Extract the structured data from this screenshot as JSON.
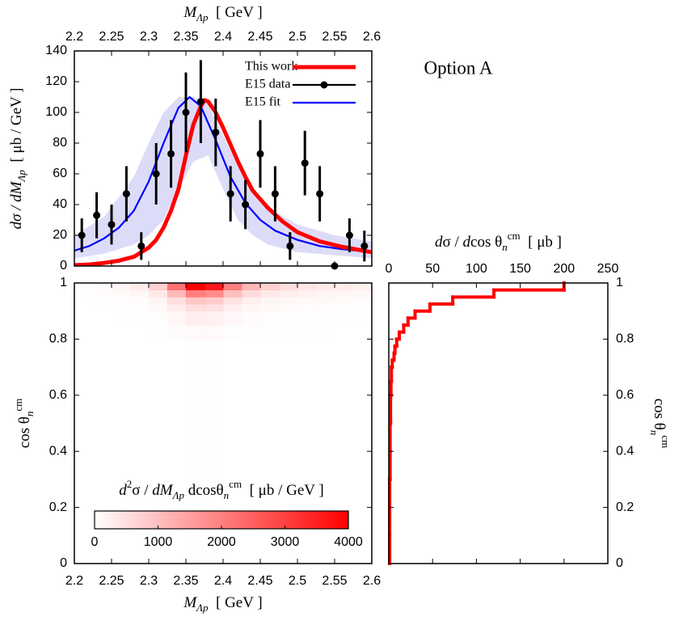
{
  "chart_data": [
    {
      "type": "line",
      "xlabel": [
        {
          "text": "M",
          "italic": true
        },
        {
          "text": "Λp",
          "sub": true,
          "italic": true
        },
        {
          "text": "  [ GeV ]"
        }
      ],
      "ylabel": [
        {
          "text": "dσ / dM",
          "italic": true
        },
        {
          "text": "Λp",
          "sub": true,
          "italic": true
        },
        {
          "text": "  [ μb / GeV ]"
        }
      ],
      "annotation": "Option A",
      "xlim": [
        2.2,
        2.6
      ],
      "xticks": [
        2.2,
        2.25,
        2.3,
        2.35,
        2.4,
        2.45,
        2.5,
        2.55,
        2.6
      ],
      "ylim": [
        0,
        140
      ],
      "yticks": [
        0,
        20,
        40,
        60,
        80,
        100,
        120,
        140
      ],
      "legend": "upper right",
      "series": [
        {
          "name": "This work",
          "color": "#ff0000",
          "x": [
            2.2,
            2.22,
            2.24,
            2.26,
            2.28,
            2.3,
            2.31,
            2.32,
            2.33,
            2.34,
            2.35,
            2.36,
            2.37,
            2.375,
            2.38,
            2.39,
            2.4,
            2.41,
            2.42,
            2.43,
            2.44,
            2.46,
            2.48,
            2.5,
            2.53,
            2.56,
            2.6
          ],
          "values": [
            0.5,
            1,
            2,
            3.5,
            6,
            12,
            17,
            25,
            36,
            50,
            72,
            92,
            104,
            108,
            107,
            100,
            90,
            79,
            68,
            58,
            49,
            38,
            29,
            22,
            16,
            12.5,
            9
          ]
        },
        {
          "name": "E15 data",
          "color": "#000000",
          "marker": "circle",
          "x": [
            2.21,
            2.23,
            2.25,
            2.27,
            2.29,
            2.31,
            2.33,
            2.35,
            2.37,
            2.39,
            2.41,
            2.43,
            2.45,
            2.47,
            2.49,
            2.51,
            2.53,
            2.55,
            2.57,
            2.59
          ],
          "values": [
            20,
            33,
            27,
            47,
            13,
            60,
            73,
            100,
            107,
            87,
            47,
            40,
            73,
            47,
            13,
            67,
            47,
            0,
            20,
            13
          ],
          "errors": [
            11,
            15,
            13,
            18,
            9,
            20,
            22,
            26,
            27,
            22,
            18,
            16,
            22,
            18,
            9,
            21,
            18,
            0,
            11,
            10
          ]
        },
        {
          "name": "E15 fit",
          "color": "#0000ff",
          "x": [
            2.2,
            2.22,
            2.24,
            2.26,
            2.28,
            2.3,
            2.32,
            2.34,
            2.355,
            2.37,
            2.39,
            2.41,
            2.43,
            2.45,
            2.47,
            2.5,
            2.53,
            2.56,
            2.6
          ],
          "values": [
            10,
            13,
            18,
            25,
            36,
            55,
            80,
            103,
            110,
            104,
            82,
            58,
            41,
            30,
            23,
            17,
            13,
            11,
            9
          ],
          "band": {
            "color": "#dcdcf8",
            "x": [
              2.2,
              2.24,
              2.28,
              2.3,
              2.32,
              2.34,
              2.36,
              2.38,
              2.4,
              2.42,
              2.44,
              2.46,
              2.5,
              2.55,
              2.6
            ],
            "upper": [
              20,
              32,
              58,
              80,
              100,
              110,
              110,
              105,
              85,
              65,
              48,
              38,
              27,
              20,
              16
            ],
            "lower": [
              5,
              8,
              14,
              20,
              30,
              50,
              68,
              72,
              50,
              30,
              20,
              14,
              9,
              7,
              5
            ]
          }
        }
      ]
    },
    {
      "type": "heatmap",
      "xlabel": [
        {
          "text": "M",
          "italic": true
        },
        {
          "text": "Λp",
          "sub": true,
          "italic": true
        },
        {
          "text": "  [ GeV ]"
        }
      ],
      "ylabel": [
        {
          "text": "cos θ"
        },
        {
          "text": "n",
          "sub": true,
          "italic": true
        },
        {
          "text": "cm",
          "sup": true
        }
      ],
      "xlim": [
        2.2,
        2.6
      ],
      "xticks": [
        2.2,
        2.25,
        2.3,
        2.35,
        2.4,
        2.45,
        2.5,
        2.55,
        2.6
      ],
      "ylim": [
        0,
        1
      ],
      "yticks": [
        0,
        0.2,
        0.4,
        0.6,
        0.8,
        1
      ],
      "color": "#ff0000",
      "xbins": [
        2.2,
        2.225,
        2.25,
        2.275,
        2.3,
        2.325,
        2.35,
        2.375,
        2.4,
        2.425,
        2.45,
        2.475,
        2.5,
        2.525,
        2.55,
        2.575,
        2.6
      ],
      "ybins": [
        0,
        0.8,
        0.85,
        0.9,
        0.925,
        0.95,
        0.975,
        1
      ],
      "z": [
        [
          0,
          0,
          0,
          1,
          2,
          6,
          10,
          9,
          5,
          3,
          2,
          1,
          1,
          1,
          1,
          1
        ],
        [
          1,
          2,
          4,
          7,
          18,
          55,
          100,
          90,
          50,
          28,
          18,
          13,
          10,
          8,
          7,
          6
        ],
        [
          3,
          5,
          10,
          18,
          45,
          138,
          250,
          225,
          125,
          70,
          45,
          33,
          25,
          20,
          18,
          15
        ],
        [
          5,
          10,
          20,
          35,
          90,
          275,
          500,
          450,
          250,
          140,
          90,
          65,
          50,
          40,
          35,
          30
        ],
        [
          9,
          18,
          36,
          63,
          162,
          495,
          900,
          810,
          450,
          252,
          162,
          117,
          90,
          72,
          63,
          54
        ],
        [
          20,
          40,
          80,
          140,
          360,
          1100,
          2000,
          1800,
          1000,
          560,
          360,
          260,
          200,
          160,
          140,
          120
        ],
        [
          40,
          80,
          160,
          280,
          720,
          2200,
          4000,
          3600,
          2000,
          1120,
          720,
          520,
          400,
          320,
          280,
          240
        ]
      ],
      "colorbar": {
        "label": [
          {
            "text": "d",
            "italic": true
          },
          {
            "text": "2",
            "sup": true
          },
          {
            "text": "σ / "
          },
          {
            "text": "dM",
            "italic": true
          },
          {
            "text": "Λp",
            "sub": true,
            "italic": true
          },
          {
            "text": " dcosθ"
          },
          {
            "text": "n",
            "sub": true,
            "italic": true
          },
          {
            "text": "cm",
            "sup": true
          },
          {
            "text": "  [ μb / GeV ]"
          }
        ],
        "lim": [
          0,
          4000
        ],
        "ticks": [
          0,
          1000,
          2000,
          3000,
          4000
        ]
      }
    },
    {
      "type": "histogram",
      "orientation": "horizontal",
      "color": "#ff0000",
      "xlabel": [
        {
          "text": "d",
          "italic": true
        },
        {
          "text": "σ / "
        },
        {
          "text": "d",
          "italic": true
        },
        {
          "text": "cos θ"
        },
        {
          "text": "n",
          "sub": true,
          "italic": true
        },
        {
          "text": "cm",
          "sup": true
        },
        {
          "text": "  [ μb ]"
        }
      ],
      "ylabel": [
        {
          "text": "cos θ"
        },
        {
          "text": "n",
          "sub": true,
          "italic": true
        },
        {
          "text": "cm",
          "sup": true
        }
      ],
      "xlim": [
        0,
        250
      ],
      "xticks": [
        0,
        50,
        100,
        150,
        200,
        250
      ],
      "ylim": [
        0,
        1
      ],
      "yticks": [
        0,
        0.2,
        0.4,
        0.6,
        0.8,
        1
      ],
      "bins": [
        0,
        0.1,
        0.2,
        0.3,
        0.4,
        0.5,
        0.6,
        0.65,
        0.7,
        0.725,
        0.75,
        0.775,
        0.8,
        0.825,
        0.85,
        0.875,
        0.9,
        0.925,
        0.95,
        0.975,
        1
      ],
      "counts": [
        1,
        1,
        1,
        1.5,
        1.5,
        2,
        2.5,
        3,
        4,
        6,
        7,
        9,
        12,
        17,
        22,
        30,
        47,
        73,
        120,
        200
      ]
    }
  ]
}
